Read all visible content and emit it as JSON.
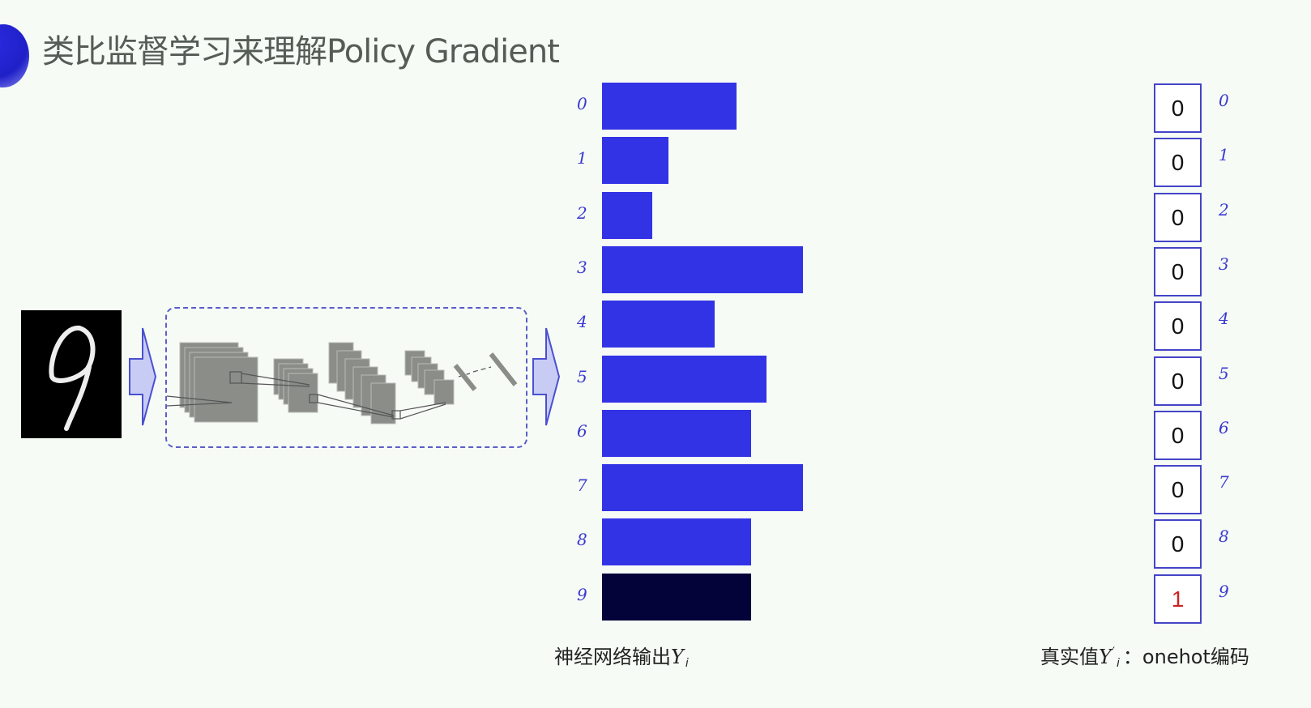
{
  "title": "类比监督学习来理解Policy Gradient",
  "input_digit": "9",
  "output_bars": {
    "caption_prefix": "神经网络输出",
    "caption_var": "Y",
    "caption_sub": "i",
    "items": [
      {
        "label": "0",
        "relative_length": 0.67
      },
      {
        "label": "1",
        "relative_length": 0.33
      },
      {
        "label": "2",
        "relative_length": 0.25
      },
      {
        "label": "3",
        "relative_length": 1.0
      },
      {
        "label": "4",
        "relative_length": 0.56
      },
      {
        "label": "5",
        "relative_length": 0.82
      },
      {
        "label": "6",
        "relative_length": 0.74
      },
      {
        "label": "7",
        "relative_length": 1.0
      },
      {
        "label": "8",
        "relative_length": 0.74
      },
      {
        "label": "9",
        "relative_length": 0.74,
        "highlighted": true
      }
    ],
    "bar_color": "#3333e6",
    "highlight_color": "#03033a"
  },
  "onehot": {
    "caption_prefix": "真实值",
    "caption_var": "Y",
    "caption_sup": "′",
    "caption_sub": "i",
    "caption_suffix": "：onehot编码",
    "values": [
      "0",
      "0",
      "0",
      "0",
      "0",
      "0",
      "0",
      "0",
      "0",
      "1"
    ],
    "labels": [
      "0",
      "1",
      "2",
      "3",
      "4",
      "5",
      "6",
      "7",
      "8",
      "9"
    ],
    "hot_color": "#cc2222"
  }
}
